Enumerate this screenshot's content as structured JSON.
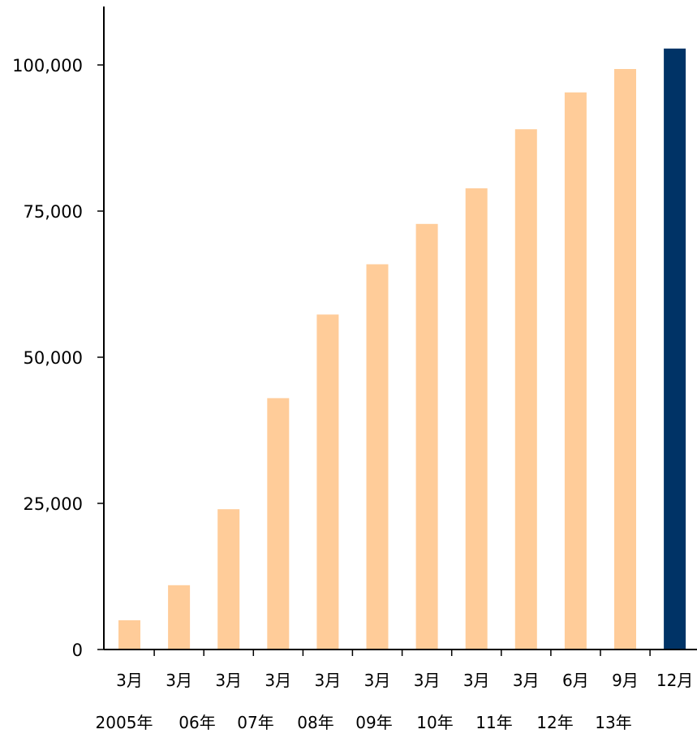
{
  "chart_data": {
    "type": "bar",
    "title": "",
    "xlabel": "",
    "ylabel": "",
    "ylim": [
      0,
      100000
    ],
    "yticks": [
      0,
      25000,
      50000,
      75000,
      100000
    ],
    "ytick_labels": [
      "0",
      "25,000",
      "50,000",
      "75,000",
      "100,000"
    ],
    "categories": [
      "3月",
      "3月",
      "3月",
      "3月",
      "3月",
      "3月",
      "3月",
      "3月",
      "3月",
      "6月",
      "9月",
      "12月"
    ],
    "year_labels": [
      "2005年",
      "06年",
      "07年",
      "08年",
      "09年",
      "10年",
      "11年",
      "12年",
      "13年"
    ],
    "values": [
      5000,
      11000,
      24000,
      43000,
      57300,
      65900,
      72800,
      78900,
      89000,
      95300,
      99300,
      102800
    ],
    "grid": false,
    "legend": "none",
    "colors": {
      "default_bar": "#FFCC99",
      "highlight_bar": "#003366",
      "axis": "#000000"
    },
    "highlight_index": 11
  }
}
